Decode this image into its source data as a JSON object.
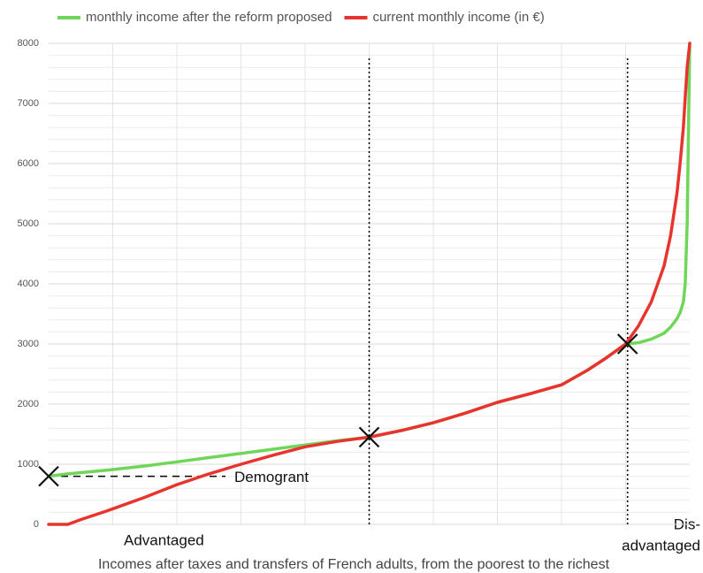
{
  "chart_data": {
    "type": "line",
    "legend": "top",
    "xlabel": "Incomes after taxes and transfers of French adults, from the poorest to the richest",
    "x": [
      0,
      3,
      5,
      9,
      15,
      20,
      25,
      30,
      35,
      40,
      45,
      50,
      55,
      60,
      65,
      70,
      75,
      80,
      84,
      87,
      90,
      92,
      94,
      96,
      97,
      98,
      98.5,
      99,
      99.3,
      99.6,
      100
    ],
    "xlim": [
      0,
      100
    ],
    "xgrid": [
      10,
      20,
      30,
      40,
      50,
      60,
      70,
      80,
      90
    ],
    "ylim": [
      0,
      8000
    ],
    "yticks": [
      0,
      1000,
      2000,
      3000,
      4000,
      5000,
      6000,
      7000,
      8000
    ],
    "minor_yticks": [
      200,
      400,
      600,
      800,
      1200,
      1400,
      1600,
      1800,
      2200,
      2400,
      2600,
      2800,
      3200,
      3400,
      3600,
      3800,
      4200,
      4400,
      4600,
      4800,
      5200,
      5400,
      5600,
      5800,
      6200,
      6400,
      6600,
      6800,
      7200,
      7400,
      7600,
      7800
    ],
    "grid": true,
    "series": [
      {
        "name": "monthly income after the reform proposed",
        "color": "#6fd65a",
        "values": [
          800,
          840,
          860,
          900,
          970,
          1040,
          1110,
          1180,
          1250,
          1320,
          1390,
          1450,
          1560,
          1690,
          1850,
          2030,
          2170,
          2320,
          2560,
          2770,
          3000,
          3020,
          3080,
          3180,
          3280,
          3420,
          3520,
          3700,
          4000,
          5000,
          8000
        ]
      },
      {
        "name": "current monthly income (in €)",
        "color": "#e8342f",
        "values": [
          0,
          0,
          80,
          220,
          450,
          660,
          840,
          1000,
          1150,
          1290,
          1380,
          1450,
          1560,
          1690,
          1850,
          2030,
          2170,
          2320,
          2560,
          2770,
          3000,
          3300,
          3700,
          4300,
          4800,
          5500,
          6000,
          6600,
          7100,
          7600,
          8000
        ]
      }
    ],
    "vlines": [
      50,
      90.3
    ],
    "points": {
      "x": [
        0,
        50,
        90.3
      ],
      "y": [
        800,
        1450,
        3000
      ]
    },
    "demogrant": {
      "text": "Demogrant",
      "value": 800
    },
    "annotations": [
      "Advantaged",
      "Dis-",
      "advantaged"
    ]
  }
}
